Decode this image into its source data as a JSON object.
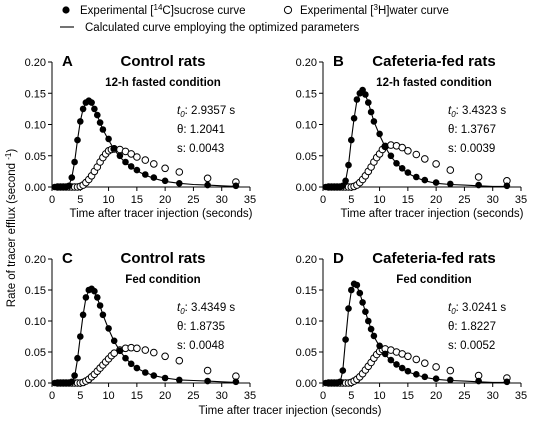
{
  "legend": {
    "sucrose": "Experimental [14C]sucrose curve",
    "water": "Experimental [3H]water curve",
    "curve": "Calculated curve employing the optimized parameters",
    "sucrose_parts": [
      "Experimental [",
      "14",
      "C]sucrose curve"
    ],
    "water_parts": [
      "Experimental [",
      "3",
      "H]water curve"
    ],
    "placement": "top-center"
  },
  "shared_ylabel": "Rate of tracer efflux (second -1)",
  "shared_ylabel_parts": [
    "Rate of tracer efflux (second ",
    "-1",
    ")"
  ],
  "shared_xlabel": "Time after tracer injection (seconds)",
  "chart_data": [
    {
      "type": "scatter",
      "panel": "A",
      "title": "Control rats",
      "subtitle": "12-h fasted condition",
      "xlabel": "Time after tracer injection (seconds)",
      "ylabel": "",
      "xlim": [
        0,
        35
      ],
      "ylim": [
        0,
        0.2
      ],
      "xticks": [
        0,
        5,
        10,
        15,
        20,
        25,
        30,
        35
      ],
      "yticks": [
        0.0,
        0.05,
        0.1,
        0.15,
        0.2
      ],
      "ytick_labels": [
        "0.00",
        "0.05",
        "0.10",
        "0.15",
        "0.20"
      ],
      "grid": false,
      "params": {
        "t0_label": "t0:",
        "t0": "2.9357 s",
        "theta_label": "θ:",
        "theta": "1.2041",
        "s_label": "s:",
        "s": "0.0043"
      },
      "series": [
        {
          "name": "Experimental [14C]sucrose curve",
          "marker": "filled-circle",
          "x": [
            0.5,
            1,
            1.5,
            2,
            2.5,
            3,
            3.5,
            4,
            4.5,
            5,
            5.5,
            6,
            6.5,
            7,
            7.5,
            8,
            8.5,
            9,
            10,
            11,
            12,
            13,
            14,
            15,
            16.5,
            18,
            20,
            22.5,
            27.5,
            32.5
          ],
          "y": [
            0,
            0,
            0,
            0,
            0,
            0.002,
            0.015,
            0.04,
            0.075,
            0.105,
            0.125,
            0.135,
            0.138,
            0.135,
            0.125,
            0.115,
            0.103,
            0.092,
            0.077,
            0.062,
            0.05,
            0.04,
            0.033,
            0.027,
            0.02,
            0.015,
            0.01,
            0.006,
            0.003,
            0.002
          ]
        },
        {
          "name": "Experimental [3H]water curve",
          "marker": "open-circle",
          "x": [
            1,
            1.5,
            2,
            2.5,
            3,
            3.5,
            4,
            4.5,
            5,
            5.5,
            6,
            6.5,
            7,
            7.5,
            8,
            8.5,
            9,
            9.5,
            10,
            10.5,
            11,
            12,
            13,
            14,
            15,
            16.5,
            18,
            20,
            22.5,
            27.5,
            32.5
          ],
          "y": [
            0,
            0,
            0,
            0,
            0,
            0,
            0,
            0,
            0.001,
            0.003,
            0.007,
            0.012,
            0.018,
            0.025,
            0.032,
            0.04,
            0.047,
            0.053,
            0.058,
            0.06,
            0.061,
            0.06,
            0.057,
            0.053,
            0.048,
            0.043,
            0.037,
            0.03,
            0.024,
            0.014,
            0.008
          ]
        },
        {
          "name": "Calculated curve employing the optimized parameters",
          "marker": "line",
          "x": [
            0,
            2.9,
            3.5,
            4,
            4.5,
            5,
            5.5,
            6,
            6.5,
            7,
            7.5,
            8,
            8.5,
            9,
            10,
            11,
            12,
            13,
            14,
            15,
            16.5,
            18,
            20,
            22.5,
            25,
            27.5,
            30,
            32.5
          ],
          "y": [
            0,
            0,
            0.015,
            0.04,
            0.075,
            0.105,
            0.125,
            0.135,
            0.138,
            0.134,
            0.125,
            0.114,
            0.103,
            0.092,
            0.075,
            0.06,
            0.048,
            0.039,
            0.032,
            0.026,
            0.019,
            0.014,
            0.009,
            0.006,
            0.004,
            0.003,
            0.002,
            0.001
          ]
        }
      ]
    },
    {
      "type": "scatter",
      "panel": "B",
      "title": "Cafeteria-fed rats",
      "subtitle": "12-h fasted condition",
      "xlabel": "Time after tracer injection (seconds)",
      "ylabel": "",
      "xlim": [
        0,
        35
      ],
      "ylim": [
        0,
        0.2
      ],
      "xticks": [
        0,
        5,
        10,
        15,
        20,
        25,
        30,
        35
      ],
      "yticks": [
        0.0,
        0.05,
        0.1,
        0.15,
        0.2
      ],
      "ytick_labels": [
        "0.00",
        "0.05",
        "0.10",
        "0.15",
        "0.20"
      ],
      "grid": false,
      "params": {
        "t0_label": "t0:",
        "t0": "3.4323 s",
        "theta_label": "θ:",
        "theta": "1.3767",
        "s_label": "s:",
        "s": "0.0039"
      },
      "series": [
        {
          "name": "Experimental [14C]sucrose curve",
          "marker": "filled-circle",
          "x": [
            0.5,
            1,
            1.5,
            2,
            2.5,
            3,
            3.5,
            4,
            4.5,
            5,
            5.5,
            6,
            6.5,
            7,
            7.5,
            8,
            8.5,
            9,
            10,
            11,
            12,
            13,
            14,
            15,
            16.5,
            18,
            20,
            22.5,
            27.5,
            32.5
          ],
          "y": [
            0,
            0,
            0,
            0,
            0,
            0,
            0.002,
            0.01,
            0.035,
            0.075,
            0.11,
            0.14,
            0.15,
            0.155,
            0.148,
            0.135,
            0.12,
            0.105,
            0.085,
            0.065,
            0.05,
            0.038,
            0.03,
            0.023,
            0.016,
            0.011,
            0.007,
            0.005,
            0.003,
            0.002
          ]
        },
        {
          "name": "Experimental [3H]water curve",
          "marker": "open-circle",
          "x": [
            1,
            1.5,
            2,
            2.5,
            3,
            3.5,
            4,
            4.5,
            5,
            5.5,
            6,
            6.5,
            7,
            7.5,
            8,
            8.5,
            9,
            9.5,
            10,
            10.5,
            11,
            12,
            13,
            14,
            15,
            16.5,
            18,
            20,
            22.5,
            27.5,
            32.5
          ],
          "y": [
            0,
            0,
            0,
            0,
            0,
            0,
            0,
            0,
            0,
            0.001,
            0.003,
            0.007,
            0.012,
            0.018,
            0.025,
            0.032,
            0.04,
            0.047,
            0.053,
            0.06,
            0.065,
            0.067,
            0.066,
            0.063,
            0.058,
            0.052,
            0.045,
            0.037,
            0.027,
            0.016,
            0.01
          ]
        },
        {
          "name": "Calculated curve employing the optimized parameters",
          "marker": "line",
          "x": [
            0,
            3.4,
            4,
            4.5,
            5,
            5.5,
            6,
            6.5,
            7,
            7.5,
            8,
            8.5,
            9,
            10,
            11,
            12,
            13,
            14,
            15,
            16.5,
            18,
            20,
            22.5,
            25,
            27.5,
            30,
            32.5
          ],
          "y": [
            0,
            0,
            0.01,
            0.035,
            0.075,
            0.11,
            0.138,
            0.152,
            0.154,
            0.147,
            0.135,
            0.12,
            0.105,
            0.083,
            0.064,
            0.049,
            0.038,
            0.029,
            0.022,
            0.015,
            0.01,
            0.006,
            0.004,
            0.003,
            0.002,
            0.001,
            0.001
          ]
        }
      ]
    },
    {
      "type": "scatter",
      "panel": "C",
      "title": "Control rats",
      "subtitle": "Fed condition",
      "xlabel": "",
      "ylabel": "",
      "xlim": [
        0,
        35
      ],
      "ylim": [
        0,
        0.2
      ],
      "xticks": [
        0,
        5,
        10,
        15,
        20,
        25,
        30,
        35
      ],
      "yticks": [
        0.0,
        0.05,
        0.1,
        0.15,
        0.2
      ],
      "ytick_labels": [
        "0.00",
        "0.05",
        "0.10",
        "0.15",
        "0.20"
      ],
      "grid": false,
      "params": {
        "t0_label": "t0:",
        "t0": "3.4349 s",
        "theta_label": "θ:",
        "theta": "1.8735",
        "s_label": "s:",
        "s": "0.0048"
      },
      "series": [
        {
          "name": "Experimental [14C]sucrose curve",
          "marker": "filled-circle",
          "x": [
            0.5,
            1,
            1.5,
            2,
            2.5,
            3,
            3.5,
            4,
            4.5,
            5,
            5.5,
            6,
            6.5,
            7,
            7.5,
            8,
            8.5,
            9,
            10,
            11,
            12,
            13,
            14,
            15,
            16.5,
            18,
            20,
            22.5,
            27.5,
            32.5
          ],
          "y": [
            0,
            0,
            0,
            0,
            0,
            0,
            0.002,
            0.012,
            0.04,
            0.075,
            0.11,
            0.138,
            0.15,
            0.152,
            0.148,
            0.138,
            0.125,
            0.11,
            0.088,
            0.068,
            0.052,
            0.04,
            0.031,
            0.024,
            0.017,
            0.012,
            0.008,
            0.005,
            0.003,
            0.002
          ]
        },
        {
          "name": "Experimental [3H]water curve",
          "marker": "open-circle",
          "x": [
            1,
            1.5,
            2,
            2.5,
            3,
            3.5,
            4,
            4.5,
            5,
            5.5,
            6,
            6.5,
            7,
            7.5,
            8,
            8.5,
            9,
            9.5,
            10,
            10.5,
            11,
            12,
            13,
            14,
            15,
            16.5,
            18,
            20,
            22.5,
            27.5,
            32.5
          ],
          "y": [
            0,
            0,
            0,
            0,
            0,
            0,
            0,
            0,
            0,
            0.001,
            0.003,
            0.006,
            0.01,
            0.014,
            0.019,
            0.024,
            0.029,
            0.034,
            0.039,
            0.044,
            0.048,
            0.053,
            0.056,
            0.057,
            0.056,
            0.053,
            0.049,
            0.043,
            0.036,
            0.02,
            0.011
          ]
        },
        {
          "name": "Calculated curve employing the optimized parameters",
          "marker": "line",
          "x": [
            0,
            3.4,
            4,
            4.5,
            5,
            5.5,
            6,
            6.5,
            7,
            7.5,
            8,
            8.5,
            9,
            10,
            11,
            12,
            13,
            14,
            15,
            16.5,
            18,
            20,
            22.5,
            25,
            27.5,
            30,
            32.5
          ],
          "y": [
            0,
            0,
            0.01,
            0.038,
            0.075,
            0.11,
            0.137,
            0.149,
            0.151,
            0.147,
            0.137,
            0.124,
            0.11,
            0.087,
            0.067,
            0.052,
            0.04,
            0.031,
            0.024,
            0.017,
            0.012,
            0.008,
            0.005,
            0.004,
            0.003,
            0.002,
            0.001
          ]
        }
      ]
    },
    {
      "type": "scatter",
      "panel": "D",
      "title": "Cafeteria-fed rats",
      "subtitle": "Fed condition",
      "xlabel": "",
      "ylabel": "",
      "xlim": [
        0,
        35
      ],
      "ylim": [
        0,
        0.2
      ],
      "xticks": [
        0,
        5,
        10,
        15,
        20,
        25,
        30,
        35
      ],
      "yticks": [
        0.0,
        0.05,
        0.1,
        0.15,
        0.2
      ],
      "ytick_labels": [
        "0.00",
        "0.05",
        "0.10",
        "0.15",
        "0.20"
      ],
      "grid": false,
      "params": {
        "t0_label": "t0:",
        "t0": "3.0241 s",
        "theta_label": "θ:",
        "theta": "1.8227",
        "s_label": "s:",
        "s": "0.0052"
      },
      "series": [
        {
          "name": "Experimental [14C]sucrose curve",
          "marker": "filled-circle",
          "x": [
            0.5,
            1,
            1.5,
            2,
            2.5,
            3,
            3.5,
            4,
            4.5,
            5,
            5.5,
            6,
            6.5,
            7,
            7.5,
            8,
            8.5,
            9,
            10,
            11,
            12,
            13,
            14,
            15,
            16.5,
            18,
            20,
            22.5,
            27.5,
            32.5
          ],
          "y": [
            0,
            0,
            0,
            0,
            0,
            0.002,
            0.02,
            0.07,
            0.12,
            0.15,
            0.16,
            0.158,
            0.145,
            0.13,
            0.115,
            0.1,
            0.087,
            0.076,
            0.06,
            0.047,
            0.037,
            0.03,
            0.024,
            0.019,
            0.014,
            0.01,
            0.007,
            0.005,
            0.003,
            0.002
          ]
        },
        {
          "name": "Experimental [3H]water curve",
          "marker": "open-circle",
          "x": [
            1,
            1.5,
            2,
            2.5,
            3,
            3.5,
            4,
            4.5,
            5,
            5.5,
            6,
            6.5,
            7,
            7.5,
            8,
            8.5,
            9,
            9.5,
            10,
            10.5,
            11,
            12,
            13,
            14,
            15,
            16.5,
            18,
            20,
            22.5,
            27.5,
            32.5
          ],
          "y": [
            0,
            0,
            0,
            0,
            0,
            0,
            0,
            0,
            0.001,
            0.003,
            0.006,
            0.01,
            0.015,
            0.021,
            0.027,
            0.033,
            0.04,
            0.046,
            0.051,
            0.054,
            0.055,
            0.053,
            0.05,
            0.047,
            0.043,
            0.038,
            0.032,
            0.026,
            0.02,
            0.012,
            0.008
          ]
        },
        {
          "name": "Calculated curve employing the optimized parameters",
          "marker": "line",
          "x": [
            0,
            3.0,
            3.5,
            4,
            4.5,
            5,
            5.5,
            6,
            6.5,
            7,
            7.5,
            8,
            8.5,
            9,
            10,
            11,
            12,
            13,
            14,
            15,
            16.5,
            18,
            20,
            22.5,
            25,
            27.5,
            30,
            32.5
          ],
          "y": [
            0,
            0,
            0.02,
            0.07,
            0.118,
            0.148,
            0.159,
            0.156,
            0.145,
            0.13,
            0.115,
            0.1,
            0.087,
            0.075,
            0.059,
            0.046,
            0.036,
            0.029,
            0.023,
            0.018,
            0.013,
            0.009,
            0.006,
            0.004,
            0.003,
            0.002,
            0.001,
            0.001
          ]
        }
      ]
    }
  ]
}
